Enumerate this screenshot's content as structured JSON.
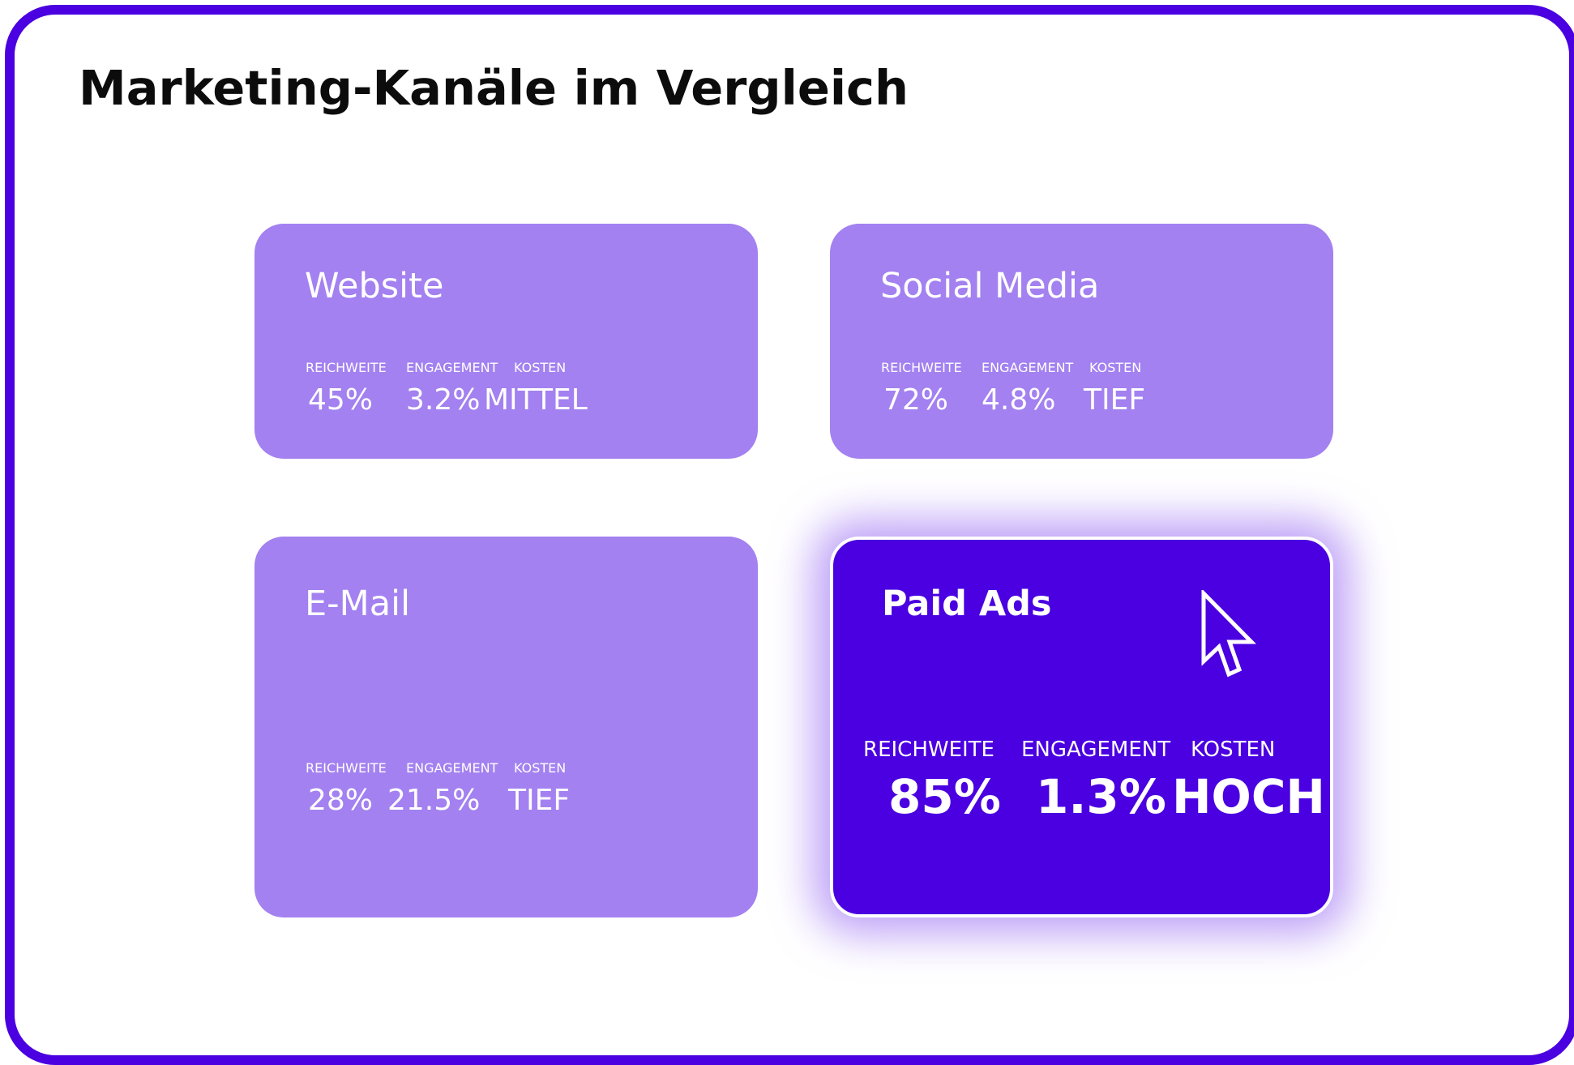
{
  "page": {
    "title": "Marketing-Kanäle im Vergleich"
  },
  "labels": {
    "reach": "REICHWEITE",
    "engagement": "ENGAGEMENT",
    "cost": "KOSTEN"
  },
  "channels": [
    {
      "name": "Website",
      "reach": "45%",
      "engagement": "3.2%",
      "cost": "MITTEL"
    },
    {
      "name": "Social Media",
      "reach": "72%",
      "engagement": "4.8%",
      "cost": "TIEF"
    },
    {
      "name": "E-Mail",
      "reach": "28%",
      "engagement": "21.5%",
      "cost": "TIEF"
    },
    {
      "name": "Paid Ads",
      "reach": "85%",
      "engagement": "1.3%",
      "cost": "HOCH",
      "selected": true
    }
  ],
  "icons": {
    "pointer": "mouse-cursor-icon"
  },
  "colors": {
    "accent": "#4a00e0",
    "card": "#a381f0",
    "text": "#ffffff",
    "title": "#0c0c0c"
  }
}
